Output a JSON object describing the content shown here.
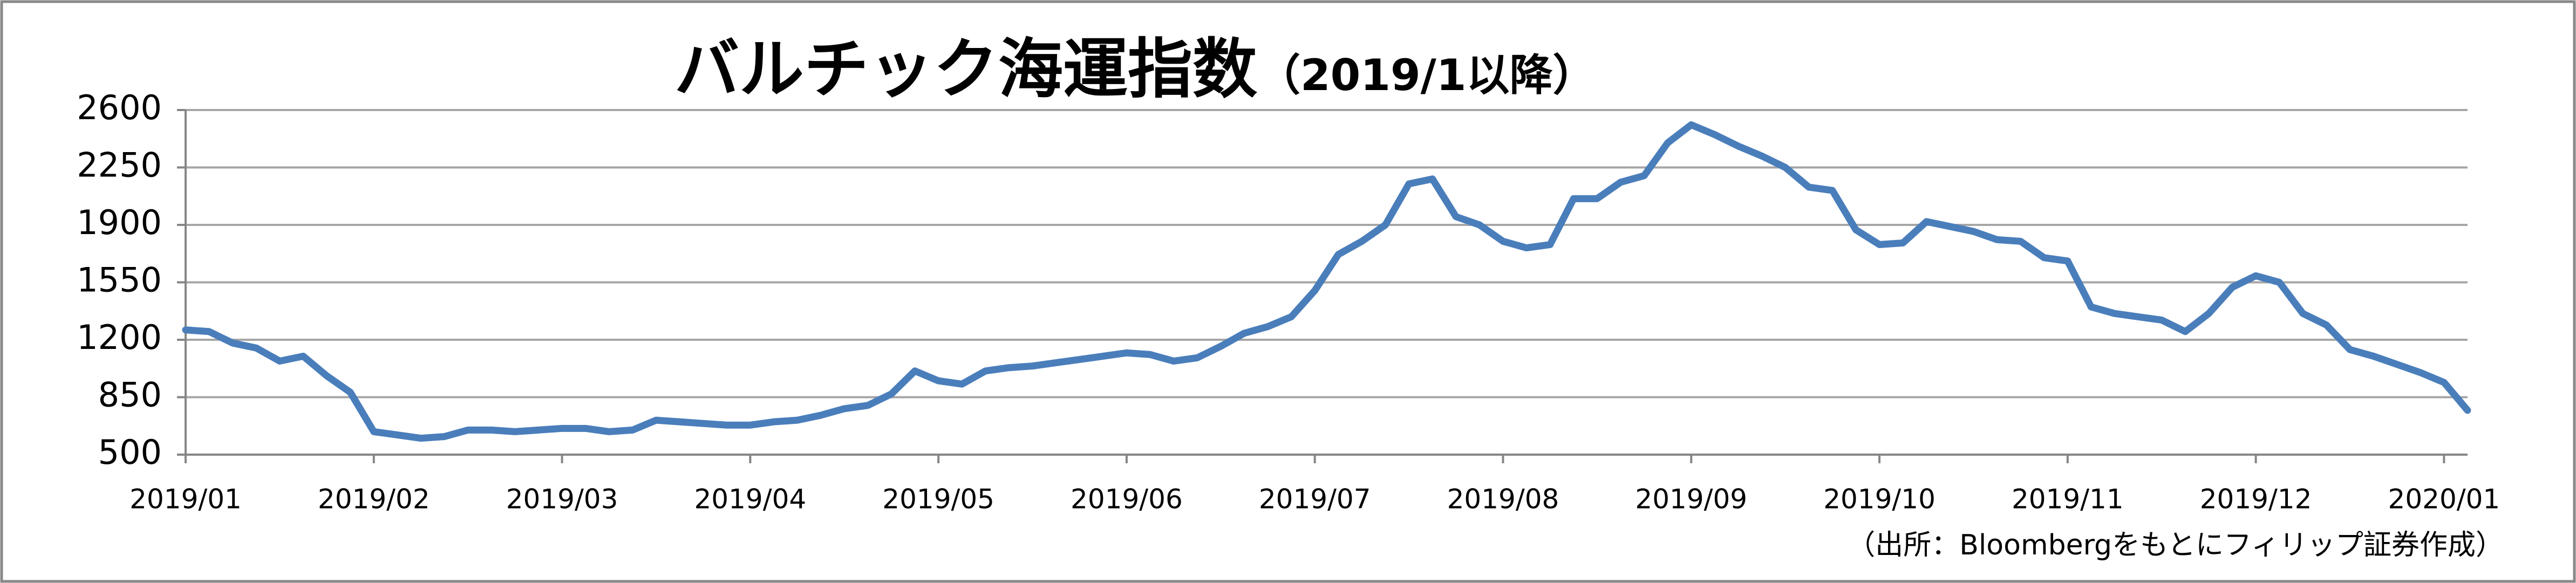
{
  "chart_data": {
    "type": "line",
    "title": "バルチック海運指数",
    "subtitle": "（2019/1以降）",
    "source": "（出所：Bloombergをもとにフィリップ証券作成）",
    "values": [
      1260,
      1250,
      1180,
      1150,
      1070,
      1100,
      980,
      880,
      640,
      620,
      600,
      610,
      650,
      650,
      640,
      650,
      660,
      660,
      640,
      650,
      710,
      700,
      690,
      680,
      680,
      700,
      710,
      740,
      780,
      800,
      870,
      1010,
      950,
      930,
      1010,
      1030,
      1040,
      1060,
      1080,
      1100,
      1120,
      1110,
      1070,
      1090,
      1160,
      1240,
      1280,
      1340,
      1500,
      1720,
      1800,
      1900,
      2150,
      2180,
      1950,
      1900,
      1800,
      1760,
      1780,
      2060,
      2060,
      2160,
      2200,
      2400,
      2510,
      2450,
      2380,
      2320,
      2250,
      2130,
      2110,
      1870,
      1780,
      1790,
      1920,
      1890,
      1860,
      1810,
      1800,
      1700,
      1680,
      1400,
      1360,
      1340,
      1320,
      1250,
      1360,
      1520,
      1590,
      1550,
      1360,
      1290,
      1140,
      1100,
      1050,
      1000,
      940,
      770
    ],
    "color": "#4a7ebb",
    "xlim": [
      0,
      97
    ],
    "xticks": [
      {
        "value": 0,
        "label": "2019/01"
      },
      {
        "value": 8,
        "label": "2019/02"
      },
      {
        "value": 16,
        "label": "2019/03"
      },
      {
        "value": 24,
        "label": "2019/04"
      },
      {
        "value": 32,
        "label": "2019/05"
      },
      {
        "value": 40,
        "label": "2019/06"
      },
      {
        "value": 48,
        "label": "2019/07"
      },
      {
        "value": 56,
        "label": "2019/08"
      },
      {
        "value": 64,
        "label": "2019/09"
      },
      {
        "value": 72,
        "label": "2019/10"
      },
      {
        "value": 80,
        "label": "2019/11"
      },
      {
        "value": 88,
        "label": "2019/12"
      },
      {
        "value": 96,
        "label": "2020/01"
      }
    ],
    "ylim": [
      500,
      2600
    ],
    "yticks": [
      500,
      850,
      1200,
      1550,
      1900,
      2250,
      2600
    ],
    "grid": true
  }
}
